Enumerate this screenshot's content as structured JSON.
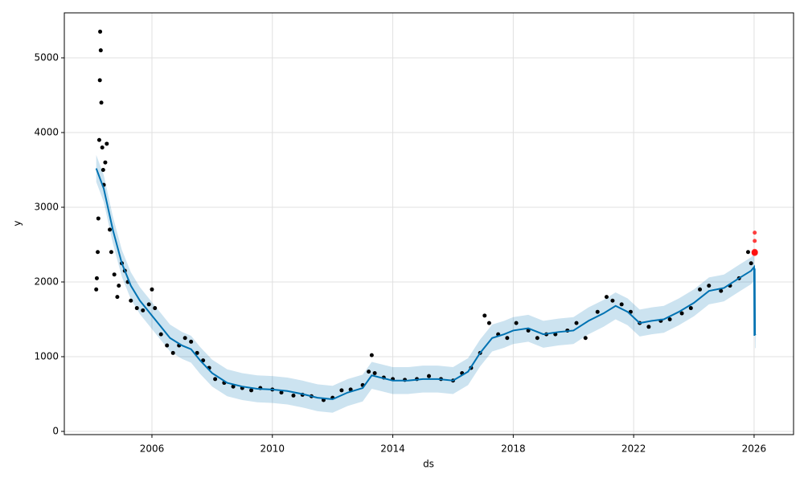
{
  "chart_data": {
    "type": "line",
    "xlabel": "ds",
    "ylabel": "y",
    "xlim": [
      2003.09,
      2027.31
    ],
    "ylim": [
      -43,
      5602
    ],
    "xticks": [
      2006,
      2010,
      2014,
      2018,
      2022,
      2026
    ],
    "yticks": [
      0,
      1000,
      2000,
      3000,
      4000,
      5000
    ],
    "grid": true,
    "observed": {
      "color": "#000000",
      "x": [
        2004.15,
        2004.17,
        2004.2,
        2004.22,
        2004.25,
        2004.27,
        2004.28,
        2004.3,
        2004.32,
        2004.35,
        2004.38,
        2004.4,
        2004.45,
        2004.5,
        2004.6,
        2004.65,
        2004.75,
        2004.85,
        2004.9,
        2005.0,
        2005.1,
        2005.2,
        2005.3,
        2005.5,
        2005.7,
        2005.9,
        2006.0,
        2006.1,
        2006.3,
        2006.5,
        2006.7,
        2006.9,
        2007.1,
        2007.3,
        2007.5,
        2007.7,
        2007.9,
        2008.1,
        2008.4,
        2008.7,
        2009.0,
        2009.3,
        2009.6,
        2010.0,
        2010.3,
        2010.7,
        2011.0,
        2011.3,
        2011.7,
        2012.0,
        2012.3,
        2012.6,
        2013.0,
        2013.2,
        2013.3,
        2013.4,
        2013.7,
        2014.0,
        2014.4,
        2014.8,
        2015.2,
        2015.6,
        2016.0,
        2016.3,
        2016.6,
        2016.9,
        2017.05,
        2017.2,
        2017.5,
        2017.8,
        2018.1,
        2018.5,
        2018.8,
        2019.1,
        2019.4,
        2019.8,
        2020.1,
        2020.4,
        2020.8,
        2021.1,
        2021.3,
        2021.6,
        2021.9,
        2022.2,
        2022.5,
        2022.9,
        2023.2,
        2023.6,
        2023.9,
        2024.2,
        2024.5,
        2024.9,
        2025.2,
        2025.5,
        2025.8,
        2025.9
      ],
      "values": [
        1900,
        2050,
        2400,
        2850,
        3900,
        4700,
        5350,
        5100,
        4400,
        3800,
        3500,
        3300,
        3600,
        3850,
        2700,
        2400,
        2100,
        1800,
        1950,
        2250,
        2150,
        2000,
        1750,
        1650,
        1620,
        1700,
        1900,
        1650,
        1300,
        1150,
        1050,
        1150,
        1250,
        1200,
        1050,
        950,
        850,
        700,
        650,
        600,
        580,
        550,
        580,
        560,
        520,
        480,
        490,
        470,
        420,
        450,
        550,
        560,
        620,
        800,
        1020,
        780,
        720,
        700,
        690,
        700,
        740,
        700,
        680,
        780,
        850,
        1050,
        1550,
        1450,
        1300,
        1250,
        1450,
        1350,
        1250,
        1300,
        1300,
        1350,
        1450,
        1250,
        1600,
        1800,
        1750,
        1700,
        1600,
        1450,
        1400,
        1480,
        1500,
        1580,
        1650,
        1900,
        1950,
        1880,
        1950,
        2050,
        2400,
        2250
      ]
    },
    "forecast": {
      "color": "#0072b2",
      "x": [
        2004.15,
        2004.4,
        2004.7,
        2005.0,
        2005.3,
        2005.6,
        2006.0,
        2006.3,
        2006.6,
        2007.0,
        2007.3,
        2007.6,
        2008.0,
        2008.5,
        2009.0,
        2009.5,
        2010.0,
        2010.5,
        2011.0,
        2011.5,
        2012.0,
        2012.5,
        2013.0,
        2013.3,
        2013.6,
        2014.0,
        2014.5,
        2015.0,
        2015.5,
        2016.0,
        2016.5,
        2016.9,
        2017.3,
        2017.7,
        2018.0,
        2018.5,
        2019.0,
        2019.5,
        2020.0,
        2020.5,
        2021.0,
        2021.4,
        2021.8,
        2022.2,
        2022.6,
        2023.0,
        2023.5,
        2024.0,
        2024.5,
        2025.0,
        2025.5,
        2025.9,
        2026.0,
        2026.01,
        2026.02,
        2026.03,
        2026.05
      ],
      "values": [
        3520,
        3250,
        2700,
        2250,
        1950,
        1750,
        1550,
        1400,
        1250,
        1150,
        1100,
        950,
        780,
        650,
        600,
        570,
        560,
        540,
        500,
        450,
        430,
        520,
        580,
        750,
        720,
        680,
        680,
        700,
        700,
        680,
        800,
        1050,
        1250,
        1300,
        1350,
        1380,
        1300,
        1330,
        1350,
        1480,
        1580,
        1680,
        1600,
        1450,
        1480,
        1500,
        1600,
        1720,
        1880,
        1920,
        2050,
        2150,
        2200,
        1280,
        2180,
        1300,
        1290
      ],
      "lower": [
        3340,
        3070,
        2520,
        2070,
        1770,
        1570,
        1370,
        1220,
        1070,
        970,
        920,
        770,
        600,
        470,
        420,
        390,
        380,
        360,
        320,
        270,
        250,
        340,
        400,
        570,
        540,
        500,
        500,
        520,
        520,
        500,
        620,
        870,
        1070,
        1120,
        1170,
        1200,
        1120,
        1150,
        1170,
        1300,
        1400,
        1500,
        1420,
        1270,
        1300,
        1320,
        1420,
        1540,
        1700,
        1740,
        1870,
        1970,
        2020,
        1100,
        2000,
        1120,
        1110
      ],
      "upper": [
        3700,
        3430,
        2880,
        2430,
        2130,
        1930,
        1730,
        1580,
        1430,
        1330,
        1280,
        1130,
        960,
        830,
        780,
        750,
        740,
        720,
        680,
        630,
        610,
        700,
        760,
        930,
        900,
        860,
        860,
        880,
        880,
        860,
        980,
        1230,
        1430,
        1480,
        1530,
        1560,
        1480,
        1510,
        1530,
        1660,
        1760,
        1860,
        1780,
        1630,
        1660,
        1680,
        1780,
        1900,
        2060,
        2100,
        2230,
        2330,
        2380,
        1460,
        2360,
        1480,
        1470
      ]
    },
    "recent": {
      "color": "#ff0000",
      "x": [
        2026.02,
        2026.02,
        2026.02,
        2026.02
      ],
      "values": [
        2390,
        2400,
        2550,
        2660
      ]
    }
  }
}
